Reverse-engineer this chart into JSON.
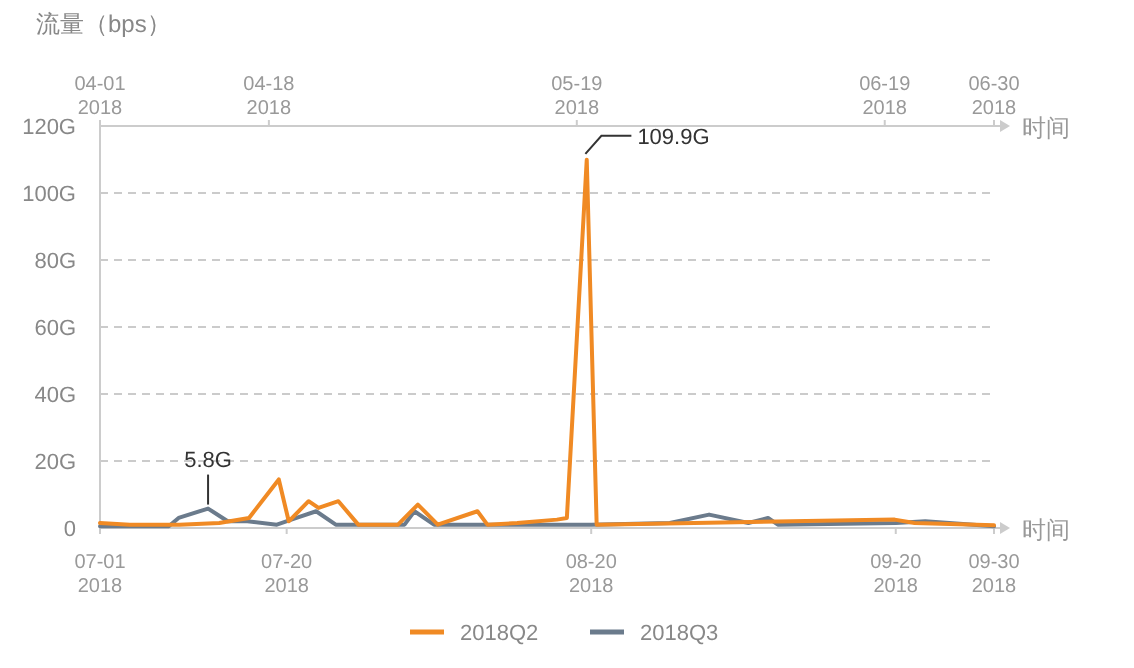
{
  "chart_data": {
    "type": "line",
    "ylabel": "流量（bps）",
    "xlabel": "时间",
    "x2label": "时间",
    "xlim": [
      "2018-07-01",
      "2018-09-30"
    ],
    "xticks": [
      {
        "value": "2018-07-01",
        "label": "07-01\n2018"
      },
      {
        "value": "2018-07-20",
        "label": "07-20\n2018"
      },
      {
        "value": "2018-08-20",
        "label": "08-20\n2018"
      },
      {
        "value": "2018-09-20",
        "label": "09-20\n2018"
      },
      {
        "value": "2018-09-30",
        "label": "09-30\n2018"
      }
    ],
    "x2lim": [
      "2018-04-01",
      "2018-06-30"
    ],
    "x2ticks": [
      {
        "value": "2018-04-01",
        "label": "04-01\n2018"
      },
      {
        "value": "2018-04-18",
        "label": "04-18\n2018"
      },
      {
        "value": "2018-05-19",
        "label": "05-19\n2018"
      },
      {
        "value": "2018-06-19",
        "label": "06-19\n2018"
      },
      {
        "value": "2018-06-30",
        "label": "06-30\n2018"
      }
    ],
    "ylim": [
      0,
      120
    ],
    "yticks": [
      0,
      {
        "value": 20,
        "label": "20G"
      },
      {
        "value": 40,
        "label": "40G"
      },
      {
        "value": 60,
        "label": "60G"
      },
      {
        "value": 80,
        "label": "80G"
      },
      {
        "value": 100,
        "label": "100G"
      },
      {
        "value": 120,
        "label": "120G"
      }
    ],
    "grid": "y",
    "legend": "bottom",
    "marker": "none",
    "line_style": "solid",
    "series": [
      {
        "name": "2018Q3",
        "color": "#6b7b8c",
        "x": [
          "2018-07-01",
          "2018-07-08",
          "2018-07-09",
          "2018-07-12",
          "2018-07-14",
          "2018-07-16",
          "2018-07-19",
          "2018-07-21",
          "2018-07-23",
          "2018-07-25",
          "2018-08-01",
          "2018-08-02",
          "2018-08-04",
          "2018-08-20",
          "2018-08-28",
          "2018-09-01",
          "2018-09-05",
          "2018-09-07",
          "2018-09-08",
          "2018-09-20",
          "2018-09-23",
          "2018-09-30"
        ],
        "values": [
          0.5,
          0.5,
          3,
          5.8,
          2,
          2,
          1,
          3,
          5,
          1,
          1,
          5,
          1,
          1,
          1.5,
          4,
          1.5,
          3,
          1,
          1.5,
          2,
          0.5
        ]
      },
      {
        "name": "2018Q2",
        "color": "#f08a24",
        "axis": "x2",
        "x": [
          "2018-04-01",
          "2018-04-04",
          "2018-04-09",
          "2018-04-13",
          "2018-04-16",
          "2018-04-19",
          "2018-04-20",
          "2018-04-22",
          "2018-04-23",
          "2018-04-25",
          "2018-04-27",
          "2018-05-01",
          "2018-05-03",
          "2018-05-05",
          "2018-05-09",
          "2018-05-10",
          "2018-05-13",
          "2018-05-17",
          "2018-05-18",
          "2018-05-20",
          "2018-05-21",
          "2018-06-20",
          "2018-06-22",
          "2018-06-30"
        ],
        "values": [
          1.5,
          1,
          1,
          1.5,
          3,
          14.5,
          2,
          8,
          6,
          8,
          1,
          1,
          7,
          1,
          5,
          1,
          1.5,
          2.5,
          3,
          109.9,
          1,
          2.5,
          1.5,
          0.8
        ]
      }
    ],
    "annotations": [
      {
        "text": "5.8G",
        "x": "2018-07-12",
        "y": 5.8
      },
      {
        "text": "109.9G",
        "x": "2018-08-19",
        "y": 109.9
      }
    ]
  }
}
